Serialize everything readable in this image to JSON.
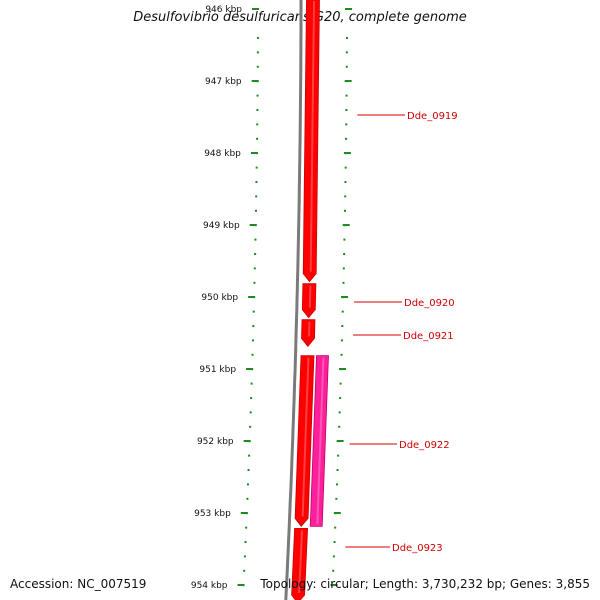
{
  "title": "Desulfovibrio desulfuricans G20, complete genome",
  "footer": {
    "accession": "Accession: NC_007519",
    "topology": "Topology: circular; Length: 3,730,232 bp; Genes: 3,855"
  },
  "colors": {
    "gene": "#ff0000",
    "gene_highlight": "#ff1f9a",
    "backbone": "#7a7a7a",
    "tick": "#1e8c1e",
    "label": "#d00000"
  },
  "ticks": [
    {
      "kbp": 946,
      "label": "946 kbp"
    },
    {
      "kbp": 947,
      "label": "947 kbp"
    },
    {
      "kbp": 948,
      "label": "948 kbp"
    },
    {
      "kbp": 949,
      "label": "949 kbp"
    },
    {
      "kbp": 950,
      "label": "950 kbp"
    },
    {
      "kbp": 951,
      "label": "951 kbp"
    },
    {
      "kbp": 952,
      "label": "952 kbp"
    },
    {
      "kbp": 953,
      "label": "953 kbp"
    },
    {
      "kbp": 954,
      "label": "954 kbp"
    }
  ],
  "genes": [
    {
      "name": "Dde_0919",
      "start_kbp": 945.7,
      "end_kbp": 949.8,
      "strand": "+",
      "color": "gene"
    },
    {
      "name": "Dde_0920",
      "start_kbp": 949.8,
      "end_kbp": 950.3,
      "strand": "+",
      "color": "gene"
    },
    {
      "name": "Dde_0921",
      "start_kbp": 950.3,
      "end_kbp": 950.7,
      "strand": "+",
      "color": "gene"
    },
    {
      "name": "Dde_0922",
      "start_kbp": 950.8,
      "end_kbp": 953.2,
      "strand": "+",
      "color": "gene"
    },
    {
      "name": "Dde_0922",
      "start_kbp": 950.8,
      "end_kbp": 953.2,
      "strand": "",
      "color": "gene_highlight"
    },
    {
      "name": "Dde_0923",
      "start_kbp": 953.2,
      "end_kbp": 954.3,
      "strand": "+",
      "color": "gene"
    }
  ]
}
